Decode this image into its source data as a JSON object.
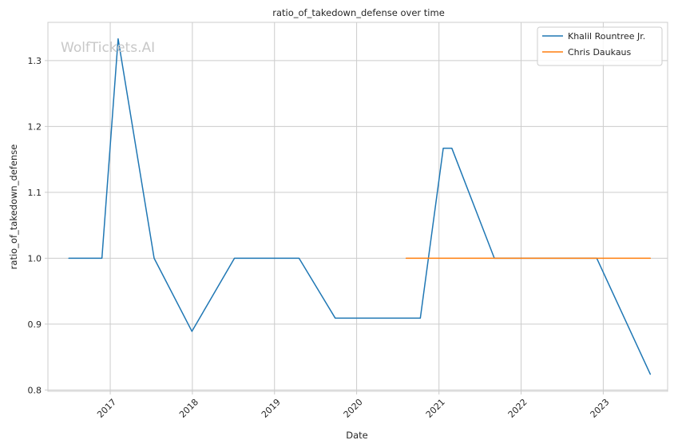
{
  "chart_data": {
    "type": "line",
    "title": "ratio_of_takedown_defense over time",
    "xlabel": "Date",
    "ylabel": "ratio_of_takedown_defense",
    "watermark": "WolfTickets.AI",
    "xlim": [
      "2016-03-30",
      "2023-10-14"
    ],
    "ylim": [
      0.798,
      1.358
    ],
    "x_ticks": [
      {
        "label": "2017",
        "date": "2017-01-01"
      },
      {
        "label": "2018",
        "date": "2018-01-01"
      },
      {
        "label": "2019",
        "date": "2019-01-01"
      },
      {
        "label": "2020",
        "date": "2020-01-01"
      },
      {
        "label": "2021",
        "date": "2021-01-01"
      },
      {
        "label": "2022",
        "date": "2022-01-01"
      },
      {
        "label": "2023",
        "date": "2023-01-01"
      }
    ],
    "y_ticks": [
      {
        "label": "0.8",
        "value": 0.8
      },
      {
        "label": "0.9",
        "value": 0.9
      },
      {
        "label": "1.0",
        "value": 1.0
      },
      {
        "label": "1.1",
        "value": 1.1
      },
      {
        "label": "1.2",
        "value": 1.2
      },
      {
        "label": "1.3",
        "value": 1.3
      }
    ],
    "grid": true,
    "legend_position": "top-right",
    "series": [
      {
        "name": "Khalil Rountree Jr.",
        "color": "#1f77b4",
        "points": [
          {
            "x": "2016-07-01",
            "y": 1.0
          },
          {
            "x": "2016-11-25",
            "y": 1.0
          },
          {
            "x": "2017-02-05",
            "y": 1.333
          },
          {
            "x": "2017-07-15",
            "y": 1.0
          },
          {
            "x": "2017-12-30",
            "y": 0.889
          },
          {
            "x": "2018-07-07",
            "y": 1.0
          },
          {
            "x": "2019-04-20",
            "y": 1.0
          },
          {
            "x": "2019-09-28",
            "y": 0.909
          },
          {
            "x": "2020-10-10",
            "y": 0.909
          },
          {
            "x": "2021-01-20",
            "y": 1.167
          },
          {
            "x": "2021-02-27",
            "y": 1.167
          },
          {
            "x": "2021-09-04",
            "y": 1.0
          },
          {
            "x": "2022-12-03",
            "y": 1.0
          },
          {
            "x": "2023-07-29",
            "y": 0.824
          }
        ]
      },
      {
        "name": "Chris Daukaus",
        "color": "#ff7f0e",
        "points": [
          {
            "x": "2020-08-08",
            "y": 1.0
          },
          {
            "x": "2023-07-29",
            "y": 1.0
          }
        ]
      }
    ]
  }
}
